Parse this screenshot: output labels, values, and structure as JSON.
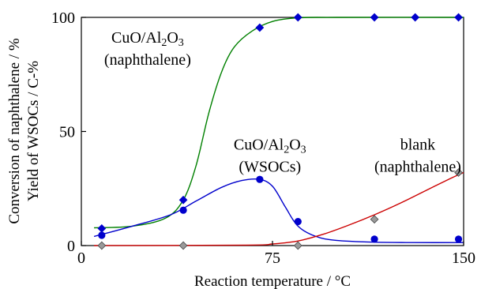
{
  "chart_data": {
    "type": "scatter",
    "xlabel": "Reaction temperature / °C",
    "ylabel_lines": [
      "Conversion of naphthalene / %",
      "Yield of WSOCs / C-%"
    ],
    "xlim": [
      0,
      150
    ],
    "ylim": [
      0,
      100
    ],
    "x_ticks": [
      0,
      75,
      150
    ],
    "y_ticks": [
      0,
      50,
      100
    ],
    "grid": false,
    "legend": "none",
    "series": [
      {
        "marker": "diamond",
        "color": "#0000cc",
        "fit_color": "#008000",
        "x": [
          8,
          40,
          70,
          85,
          115,
          131,
          148
        ],
        "y": [
          7.5,
          20,
          95.5,
          100,
          100,
          100,
          100
        ],
        "fit": [
          [
            5,
            7.8
          ],
          [
            20,
            8.5
          ],
          [
            33,
            12
          ],
          [
            40,
            20
          ],
          [
            45,
            35
          ],
          [
            50,
            58
          ],
          [
            55,
            76
          ],
          [
            60,
            87
          ],
          [
            67,
            94
          ],
          [
            75,
            98.2
          ],
          [
            85,
            99.8
          ],
          [
            100,
            100
          ],
          [
            150,
            100
          ]
        ]
      },
      {
        "marker": "circle",
        "color": "#0000cc",
        "fit_color": "#0000cc",
        "x": [
          8,
          40,
          70,
          85,
          115,
          148
        ],
        "y": [
          4.5,
          15.5,
          29,
          10.5,
          2.8,
          2.8
        ],
        "fit": [
          [
            5,
            4
          ],
          [
            20,
            8.5
          ],
          [
            35,
            13.5
          ],
          [
            45,
            19.5
          ],
          [
            55,
            25.5
          ],
          [
            63,
            28.5
          ],
          [
            70,
            29
          ],
          [
            75,
            26
          ],
          [
            80,
            17
          ],
          [
            85,
            8.5
          ],
          [
            92,
            4
          ],
          [
            100,
            2.3
          ],
          [
            115,
            1.5
          ],
          [
            130,
            1.3
          ],
          [
            150,
            1.3
          ]
        ]
      },
      {
        "marker": "diamond",
        "color": "#999999",
        "fit_color": "#cc0000",
        "x": [
          8,
          40,
          85,
          115,
          148
        ],
        "y": [
          0,
          0,
          0,
          11.5,
          32
        ],
        "fit": [
          [
            5,
            0
          ],
          [
            65,
            0.2
          ],
          [
            75,
            0.7
          ],
          [
            85,
            2
          ],
          [
            95,
            5
          ],
          [
            105,
            9
          ],
          [
            115,
            13.5
          ],
          [
            125,
            18.5
          ],
          [
            135,
            24
          ],
          [
            145,
            29.5
          ],
          [
            150,
            32
          ]
        ]
      }
    ],
    "annotations": [
      {
        "lines": [
          "CuO/Al2O3",
          "(naphthalene)"
        ],
        "x": 26,
        "y": 89
      },
      {
        "lines": [
          "CuO/Al2O3",
          "(WSOCs)"
        ],
        "x": 74,
        "y": 42
      },
      {
        "lines": [
          "blank",
          "(naphthalene)"
        ],
        "x": 132,
        "y": 42
      }
    ]
  }
}
